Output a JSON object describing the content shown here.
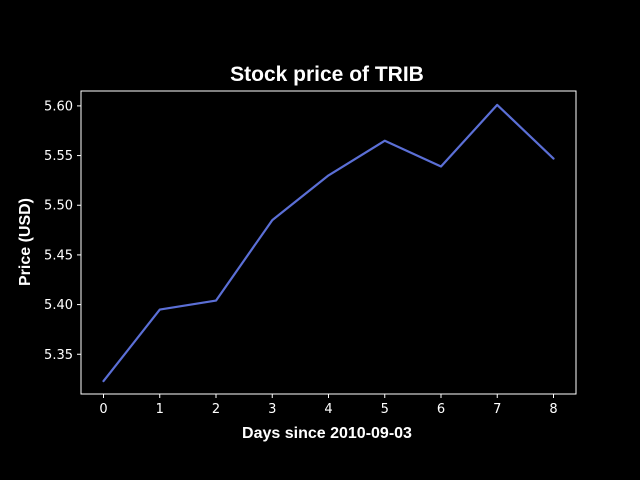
{
  "chart_data": {
    "type": "line",
    "title": "Stock price of TRIB",
    "xlabel": "Days since 2010-09-03",
    "ylabel": "Price (USD)",
    "x": [
      0,
      1,
      2,
      3,
      4,
      5,
      6,
      7,
      8
    ],
    "series": [
      {
        "values": [
          5.323,
          5.395,
          5.404,
          5.485,
          5.53,
          5.565,
          5.539,
          5.601,
          5.547
        ],
        "color": "#5b6fd6"
      }
    ],
    "xlim": [
      -0.4,
      8.4
    ],
    "ylim": [
      5.31,
      5.615
    ],
    "xticks": [
      "0",
      "1",
      "2",
      "3",
      "4",
      "5",
      "6",
      "7",
      "8"
    ],
    "yticks": [
      "5.35",
      "5.40",
      "5.45",
      "5.50",
      "5.55",
      "5.60"
    ],
    "grid": false,
    "background": "#000000",
    "foreground": "#ffffff"
  }
}
